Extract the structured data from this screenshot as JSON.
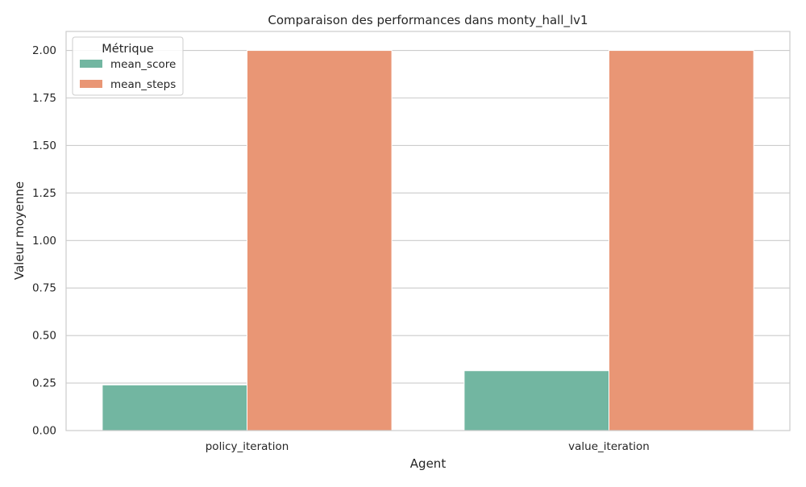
{
  "chart_data": {
    "type": "bar",
    "title": "Comparaison des performances dans monty_hall_lv1",
    "xlabel": "Agent",
    "ylabel": "Valeur moyenne",
    "categories": [
      "policy_iteration",
      "value_iteration"
    ],
    "series": [
      {
        "name": "mean_score",
        "values": [
          0.24,
          0.315
        ],
        "color": "#72b6a1"
      },
      {
        "name": "mean_steps",
        "values": [
          2.0,
          2.0
        ],
        "color": "#e99675"
      }
    ],
    "ylim": [
      0,
      2.1
    ],
    "yticks": [
      "0.00",
      "0.25",
      "0.50",
      "0.75",
      "1.00",
      "1.25",
      "1.50",
      "1.75",
      "2.00"
    ],
    "ytick_values": [
      0,
      0.25,
      0.5,
      0.75,
      1.0,
      1.25,
      1.5,
      1.75,
      2.0
    ],
    "grid": true,
    "legend": {
      "title": "Métrique",
      "placement": "top-left"
    }
  }
}
